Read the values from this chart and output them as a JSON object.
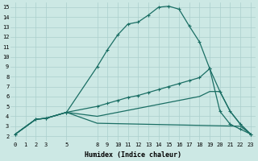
{
  "bg_color": "#cce8e4",
  "grid_color": "#aacfcc",
  "line_color": "#1a6e64",
  "xlabel": "Humidex (Indice chaleur)",
  "xlim": [
    -0.5,
    23.5
  ],
  "ylim": [
    1.5,
    15.5
  ],
  "xtick_pos": [
    0,
    1,
    2,
    3,
    5,
    8,
    9,
    10,
    11,
    12,
    13,
    14,
    15,
    16,
    17,
    18,
    19,
    20,
    21,
    22,
    23
  ],
  "xtick_labels": [
    "0",
    "1",
    "2",
    "3",
    "5",
    "8",
    "9",
    "10",
    "11",
    "12",
    "13",
    "14",
    "15",
    "16",
    "17",
    "18",
    "19",
    "20",
    "21",
    "22",
    "23"
  ],
  "ytick_pos": [
    2,
    3,
    4,
    5,
    6,
    7,
    8,
    9,
    10,
    11,
    12,
    13,
    14,
    15
  ],
  "ytick_labels": [
    "2",
    "3",
    "4",
    "5",
    "6",
    "7",
    "8",
    "9",
    "10",
    "11",
    "12",
    "13",
    "14",
    "15"
  ],
  "line1_x": [
    0,
    2,
    3,
    5,
    8,
    9,
    10,
    11,
    12,
    13,
    14,
    15,
    16,
    17,
    18,
    19,
    20,
    21,
    22,
    23
  ],
  "line1_y": [
    2.2,
    3.7,
    3.8,
    4.4,
    9.0,
    10.7,
    12.2,
    13.3,
    13.5,
    14.2,
    15.0,
    15.1,
    14.8,
    13.1,
    11.5,
    8.8,
    4.5,
    3.2,
    2.7,
    2.2
  ],
  "line2_x": [
    0,
    2,
    3,
    5,
    8,
    9,
    10,
    11,
    12,
    13,
    14,
    15,
    16,
    17,
    18,
    19,
    20,
    21,
    22,
    23
  ],
  "line2_y": [
    2.2,
    3.7,
    3.8,
    4.4,
    5.0,
    5.3,
    5.6,
    5.9,
    6.1,
    6.4,
    6.7,
    7.0,
    7.3,
    7.6,
    7.9,
    8.8,
    6.5,
    4.5,
    3.2,
    2.2
  ],
  "line3_x": [
    0,
    2,
    3,
    5,
    8,
    22,
    23
  ],
  "line3_y": [
    2.2,
    3.7,
    3.8,
    4.4,
    3.3,
    3.0,
    2.2
  ],
  "line4_x": [
    0,
    2,
    3,
    5,
    8,
    9,
    10,
    11,
    12,
    13,
    14,
    15,
    16,
    17,
    18,
    19,
    20,
    21,
    22,
    23
  ],
  "line4_y": [
    2.2,
    3.7,
    3.8,
    4.4,
    4.0,
    4.2,
    4.4,
    4.6,
    4.8,
    5.0,
    5.2,
    5.4,
    5.6,
    5.8,
    6.0,
    6.5,
    6.5,
    4.5,
    3.2,
    2.2
  ],
  "lw": 0.9,
  "ms": 2.5
}
